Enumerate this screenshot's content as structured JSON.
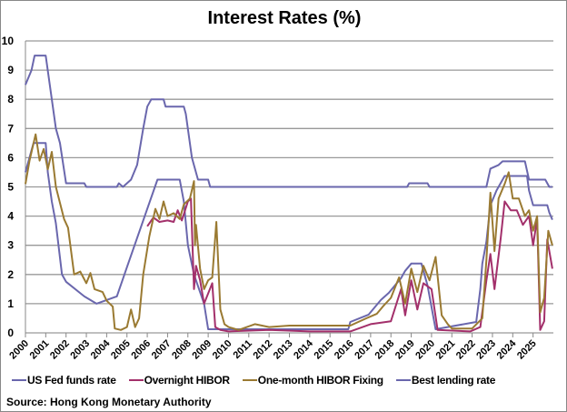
{
  "chart_data": {
    "type": "line",
    "title": "Interest Rates (%)",
    "xlabel": "",
    "ylabel": "",
    "xlim": [
      2000,
      2026
    ],
    "ylim": [
      0,
      10
    ],
    "yticks": [
      0,
      1,
      2,
      3,
      4,
      5,
      6,
      7,
      8,
      9,
      10
    ],
    "xticks": [
      "2000",
      "2001",
      "2002",
      "2003",
      "2004",
      "2005",
      "2006",
      "2007",
      "2008",
      "2009",
      "2010",
      "2011",
      "2012",
      "2013",
      "2014",
      "2015",
      "2016",
      "2017",
      "2018",
      "2019",
      "2020",
      "2021",
      "2022",
      "2023",
      "2024",
      "2025"
    ],
    "grid": true,
    "legend_position": "bottom",
    "source": "Source: Hong Kong Monetary Authority",
    "series": [
      {
        "name": "US Fed funds rate",
        "color": "#6a67ad",
        "points": [
          [
            2000,
            5.5
          ],
          [
            2000.4,
            6.5
          ],
          [
            2001.0,
            6.5
          ],
          [
            2001.1,
            5.5
          ],
          [
            2001.3,
            4.5
          ],
          [
            2001.5,
            3.75
          ],
          [
            2001.8,
            2.0
          ],
          [
            2002.0,
            1.75
          ],
          [
            2002.9,
            1.25
          ],
          [
            2003.5,
            1.0
          ],
          [
            2004.5,
            1.25
          ],
          [
            2005.0,
            2.25
          ],
          [
            2005.5,
            3.25
          ],
          [
            2006.0,
            4.25
          ],
          [
            2006.5,
            5.25
          ],
          [
            2007.6,
            5.25
          ],
          [
            2007.8,
            4.5
          ],
          [
            2008.0,
            3.0
          ],
          [
            2008.3,
            2.0
          ],
          [
            2008.8,
            1.0
          ],
          [
            2009.0,
            0.125
          ],
          [
            2015.9,
            0.125
          ],
          [
            2016.0,
            0.375
          ],
          [
            2016.9,
            0.625
          ],
          [
            2017.2,
            0.875
          ],
          [
            2017.5,
            1.125
          ],
          [
            2017.9,
            1.375
          ],
          [
            2018.2,
            1.625
          ],
          [
            2018.5,
            1.875
          ],
          [
            2018.7,
            2.125
          ],
          [
            2019.0,
            2.375
          ],
          [
            2019.5,
            2.375
          ],
          [
            2019.6,
            2.125
          ],
          [
            2019.8,
            1.625
          ],
          [
            2020.2,
            0.125
          ],
          [
            2022.2,
            0.375
          ],
          [
            2022.4,
            1.5
          ],
          [
            2022.5,
            2.375
          ],
          [
            2022.7,
            3.125
          ],
          [
            2022.9,
            4.375
          ],
          [
            2023.2,
            4.875
          ],
          [
            2023.4,
            5.125
          ],
          [
            2023.6,
            5.375
          ],
          [
            2024.7,
            5.375
          ],
          [
            2024.8,
            4.875
          ],
          [
            2025.0,
            4.375
          ],
          [
            2025.7,
            4.375
          ],
          [
            2025.8,
            4.125
          ],
          [
            2025.95,
            3.875
          ]
        ]
      },
      {
        "name": "Overnight HIBOR",
        "color": "#a3306b",
        "points": [
          [
            2006.0,
            3.65
          ],
          [
            2006.3,
            3.95
          ],
          [
            2006.6,
            3.8
          ],
          [
            2007.0,
            3.85
          ],
          [
            2007.3,
            3.8
          ],
          [
            2007.5,
            4.2
          ],
          [
            2007.7,
            3.85
          ],
          [
            2008.0,
            4.5
          ],
          [
            2008.15,
            4.6
          ],
          [
            2008.3,
            1.5
          ],
          [
            2008.4,
            2.3
          ],
          [
            2008.6,
            1.8
          ],
          [
            2008.8,
            1.0
          ],
          [
            2009.2,
            1.7
          ],
          [
            2009.35,
            0.2
          ],
          [
            2009.6,
            0.1
          ],
          [
            2010,
            0.05
          ],
          [
            2012,
            0.1
          ],
          [
            2014,
            0.05
          ],
          [
            2016,
            0.05
          ],
          [
            2017,
            0.3
          ],
          [
            2018,
            0.4
          ],
          [
            2018.5,
            1.5
          ],
          [
            2018.7,
            0.6
          ],
          [
            2019.0,
            1.8
          ],
          [
            2019.3,
            0.8
          ],
          [
            2019.6,
            1.7
          ],
          [
            2020.0,
            1.5
          ],
          [
            2020.3,
            0.1
          ],
          [
            2021.9,
            0.05
          ],
          [
            2022.4,
            0.2
          ],
          [
            2022.7,
            1.8
          ],
          [
            2022.9,
            2.7
          ],
          [
            2023.1,
            1.5
          ],
          [
            2023.4,
            3.2
          ],
          [
            2023.6,
            4.5
          ],
          [
            2023.9,
            4.2
          ],
          [
            2024.2,
            4.2
          ],
          [
            2024.5,
            3.7
          ],
          [
            2024.8,
            4.0
          ],
          [
            2025.0,
            3.0
          ],
          [
            2025.2,
            3.9
          ],
          [
            2025.35,
            0.1
          ],
          [
            2025.55,
            0.4
          ],
          [
            2025.7,
            3.2
          ],
          [
            2025.95,
            2.2
          ]
        ]
      },
      {
        "name": "One-month HIBOR Fixing",
        "color": "#9a7a32",
        "points": [
          [
            2000.0,
            5.1
          ],
          [
            2000.2,
            5.9
          ],
          [
            2000.5,
            6.8
          ],
          [
            2000.7,
            5.9
          ],
          [
            2000.9,
            6.3
          ],
          [
            2001.1,
            5.6
          ],
          [
            2001.3,
            6.2
          ],
          [
            2001.5,
            5.0
          ],
          [
            2001.9,
            3.9
          ],
          [
            2002.1,
            3.6
          ],
          [
            2002.4,
            2.0
          ],
          [
            2002.7,
            2.1
          ],
          [
            2003.0,
            1.7
          ],
          [
            2003.2,
            2.05
          ],
          [
            2003.4,
            1.5
          ],
          [
            2003.8,
            1.4
          ],
          [
            2004.0,
            1.1
          ],
          [
            2004.3,
            0.9
          ],
          [
            2004.4,
            0.15
          ],
          [
            2004.7,
            0.1
          ],
          [
            2005.0,
            0.2
          ],
          [
            2005.2,
            0.8
          ],
          [
            2005.4,
            0.2
          ],
          [
            2005.6,
            0.5
          ],
          [
            2005.8,
            2.0
          ],
          [
            2006.1,
            3.3
          ],
          [
            2006.4,
            4.25
          ],
          [
            2006.6,
            3.9
          ],
          [
            2006.8,
            4.5
          ],
          [
            2007.0,
            4.0
          ],
          [
            2007.3,
            4.1
          ],
          [
            2007.6,
            3.9
          ],
          [
            2007.8,
            4.4
          ],
          [
            2008.1,
            4.6
          ],
          [
            2008.3,
            5.2
          ],
          [
            2008.35,
            3.0
          ],
          [
            2008.4,
            3.7
          ],
          [
            2008.6,
            2.2
          ],
          [
            2008.8,
            1.5
          ],
          [
            2009.0,
            1.8
          ],
          [
            2009.2,
            1.9
          ],
          [
            2009.4,
            3.8
          ],
          [
            2009.6,
            0.8
          ],
          [
            2009.8,
            0.3
          ],
          [
            2010.0,
            0.2
          ],
          [
            2010.5,
            0.1
          ],
          [
            2011.3,
            0.3
          ],
          [
            2012,
            0.2
          ],
          [
            2013,
            0.25
          ],
          [
            2014,
            0.25
          ],
          [
            2015,
            0.25
          ],
          [
            2016.0,
            0.25
          ],
          [
            2016.8,
            0.5
          ],
          [
            2017.3,
            0.65
          ],
          [
            2017.6,
            0.9
          ],
          [
            2018.0,
            1.2
          ],
          [
            2018.4,
            1.9
          ],
          [
            2018.7,
            1.0
          ],
          [
            2019.0,
            2.2
          ],
          [
            2019.3,
            1.4
          ],
          [
            2019.6,
            2.3
          ],
          [
            2019.9,
            1.8
          ],
          [
            2020.2,
            2.6
          ],
          [
            2020.5,
            0.6
          ],
          [
            2020.8,
            0.3
          ],
          [
            2021,
            0.15
          ],
          [
            2022.0,
            0.15
          ],
          [
            2022.5,
            0.5
          ],
          [
            2022.7,
            2.5
          ],
          [
            2022.9,
            4.8
          ],
          [
            2023.1,
            2.8
          ],
          [
            2023.3,
            4.6
          ],
          [
            2023.6,
            5.1
          ],
          [
            2023.8,
            5.5
          ],
          [
            2024.0,
            4.6
          ],
          [
            2024.3,
            4.6
          ],
          [
            2024.6,
            4.0
          ],
          [
            2024.8,
            4.2
          ],
          [
            2025.0,
            3.5
          ],
          [
            2025.2,
            4.0
          ],
          [
            2025.35,
            0.7
          ],
          [
            2025.55,
            1.2
          ],
          [
            2025.75,
            3.5
          ],
          [
            2025.95,
            3.0
          ]
        ]
      },
      {
        "name": "Best lending rate",
        "color": "#6a67ad",
        "points": [
          [
            2000.0,
            8.5
          ],
          [
            2000.3,
            9.0
          ],
          [
            2000.45,
            9.5
          ],
          [
            2001.0,
            9.5
          ],
          [
            2001.5,
            7.0
          ],
          [
            2001.7,
            6.5
          ],
          [
            2002.0,
            5.125
          ],
          [
            2002.9,
            5.125
          ],
          [
            2003.0,
            5.0
          ],
          [
            2004.5,
            5.0
          ],
          [
            2004.6,
            5.125
          ],
          [
            2004.8,
            5.0
          ],
          [
            2005.2,
            5.25
          ],
          [
            2005.5,
            5.75
          ],
          [
            2005.8,
            7.0
          ],
          [
            2006.0,
            7.75
          ],
          [
            2006.2,
            8.0
          ],
          [
            2006.8,
            8.0
          ],
          [
            2006.9,
            7.75
          ],
          [
            2007.8,
            7.75
          ],
          [
            2007.9,
            7.5
          ],
          [
            2008.2,
            6.0
          ],
          [
            2008.5,
            5.25
          ],
          [
            2009.0,
            5.25
          ],
          [
            2009.1,
            5.0
          ],
          [
            2018.8,
            5.0
          ],
          [
            2018.9,
            5.125
          ],
          [
            2019.8,
            5.125
          ],
          [
            2019.9,
            5.0
          ],
          [
            2022.7,
            5.0
          ],
          [
            2022.9,
            5.625
          ],
          [
            2023.3,
            5.75
          ],
          [
            2023.5,
            5.875
          ],
          [
            2024.6,
            5.875
          ],
          [
            2024.8,
            5.25
          ],
          [
            2025.6,
            5.25
          ],
          [
            2025.8,
            5.0
          ],
          [
            2025.95,
            5.0
          ]
        ]
      }
    ]
  }
}
